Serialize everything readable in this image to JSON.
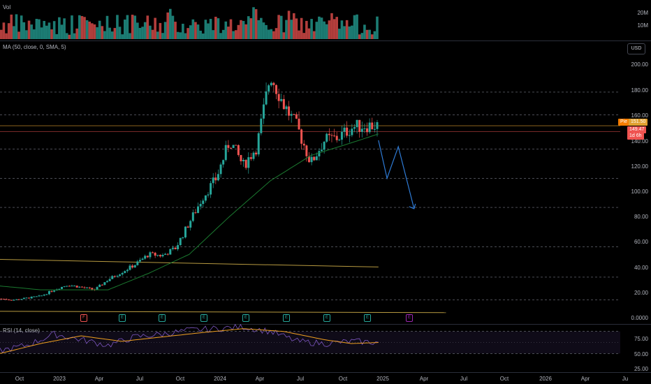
{
  "volume_pane": {
    "label": "Vol",
    "y_ticks": [
      "20M",
      "10M"
    ]
  },
  "main_pane": {
    "label": "MA (50, close, 0, SMA, 5)",
    "currency_button": "USD",
    "y_ticks": [
      "200.00",
      "180.00",
      "160.00",
      "140.00",
      "120.00",
      "100.00",
      "80.00",
      "60.00",
      "40.00",
      "20.00",
      "0.0000"
    ],
    "price_tags": {
      "left_tag": "Pie",
      "last_price": "151.50",
      "ma_value": "149.47",
      "countdown": "1d 6h"
    },
    "events": [
      "F",
      "E",
      "E",
      "E",
      "E",
      "E",
      "E",
      "E",
      "E"
    ]
  },
  "rsi_pane": {
    "label": "RSI (14, close)",
    "y_ticks": [
      "75.00",
      "50.00",
      "25.00"
    ]
  },
  "x_axis": {
    "labels": [
      "Oct",
      "2023",
      "Apr",
      "Jul",
      "Oct",
      "2024",
      "Apr",
      "Jul",
      "Oct",
      "2025",
      "Apr",
      "Jul",
      "Oct",
      "2026",
      "Apr",
      "Ju"
    ]
  },
  "colors": {
    "up": "#26a69a",
    "down": "#ef5350",
    "ma": "#1b7a30",
    "rsi": "#7e57c2",
    "rsi_ma": "#f0a020",
    "trendline": "#b79a40",
    "projection": "#2e7bd6",
    "earnings": "#26a69a",
    "future_event": "#9c27b0"
  },
  "chart_data": {
    "type": "candlestick",
    "title": "",
    "ylabel": "USD",
    "ylim": [
      0,
      200
    ],
    "x_range": [
      "2022-09",
      "2026-07"
    ],
    "price_anchors": [
      [
        "2022-09",
        15
      ],
      [
        "2022-10",
        14
      ],
      [
        "2022-12",
        17
      ],
      [
        "2023-01",
        22
      ],
      [
        "2023-02",
        26
      ],
      [
        "2023-03",
        24
      ],
      [
        "2023-04",
        22
      ],
      [
        "2023-05",
        30
      ],
      [
        "2023-06",
        36
      ],
      [
        "2023-07",
        42
      ],
      [
        "2023-08",
        50
      ],
      [
        "2023-09",
        49
      ],
      [
        "2023-10",
        55
      ],
      [
        "2023-11",
        75
      ],
      [
        "2023-12",
        95
      ],
      [
        "2024-01",
        110
      ],
      [
        "2024-02",
        140
      ],
      [
        "2024-03",
        120
      ],
      [
        "2024-04",
        135
      ],
      [
        "2024-05",
        192
      ],
      [
        "2024-06",
        168
      ],
      [
        "2024-07",
        150
      ],
      [
        "2024-08",
        122
      ],
      [
        "2024-09",
        140
      ],
      [
        "2024-10",
        142
      ],
      [
        "2024-11",
        150
      ],
      [
        "2024-12",
        152
      ],
      [
        "2025-01",
        151.5
      ]
    ],
    "ma50_anchors": [
      [
        "2022-09",
        25
      ],
      [
        "2022-12",
        22
      ],
      [
        "2023-03",
        22
      ],
      [
        "2023-05",
        22
      ],
      [
        "2023-08",
        35
      ],
      [
        "2023-11",
        50
      ],
      [
        "2024-02",
        80
      ],
      [
        "2024-05",
        108
      ],
      [
        "2024-08",
        128
      ],
      [
        "2024-11",
        138
      ],
      [
        "2025-01",
        145
      ]
    ],
    "projection": [
      [
        "2025-01",
        140
      ],
      [
        "2025-01-20",
        110
      ],
      [
        "2025-02-15",
        135
      ],
      [
        "2025-03-20",
        86
      ]
    ],
    "trendlines": [
      [
        [
          "2022-09",
          46
        ],
        [
          "2025-01",
          40
        ]
      ],
      [
        [
          "2022-09",
          5
        ],
        [
          "2025-06",
          4
        ]
      ]
    ],
    "horizontal_levels": [
      178,
      160,
      133,
      110,
      87,
      56,
      32,
      14
    ],
    "last_price": 151.5,
    "ma_last": 149.47,
    "rsi": {
      "ylim": [
        0,
        100
      ],
      "levels": [
        70,
        30
      ],
      "anchors": [
        [
          "2022-09",
          35
        ],
        [
          "2022-11",
          45
        ],
        [
          "2023-01",
          65
        ],
        [
          "2023-03",
          55
        ],
        [
          "2023-05",
          45
        ],
        [
          "2023-07",
          60
        ],
        [
          "2023-09",
          65
        ],
        [
          "2023-11",
          72
        ],
        [
          "2024-01",
          75
        ],
        [
          "2024-03",
          78
        ],
        [
          "2024-05",
          70
        ],
        [
          "2024-07",
          52
        ],
        [
          "2024-09",
          48
        ],
        [
          "2024-11",
          52
        ],
        [
          "2025-01",
          50
        ]
      ],
      "ma_anchors": [
        [
          "2022-09",
          30
        ],
        [
          "2022-12",
          48
        ],
        [
          "2023-03",
          62
        ],
        [
          "2023-06",
          52
        ],
        [
          "2023-09",
          60
        ],
        [
          "2023-12",
          68
        ],
        [
          "2024-03",
          75
        ],
        [
          "2024-06",
          70
        ],
        [
          "2024-09",
          55
        ],
        [
          "2024-11",
          48
        ],
        [
          "2025-01",
          50
        ]
      ]
    }
  }
}
